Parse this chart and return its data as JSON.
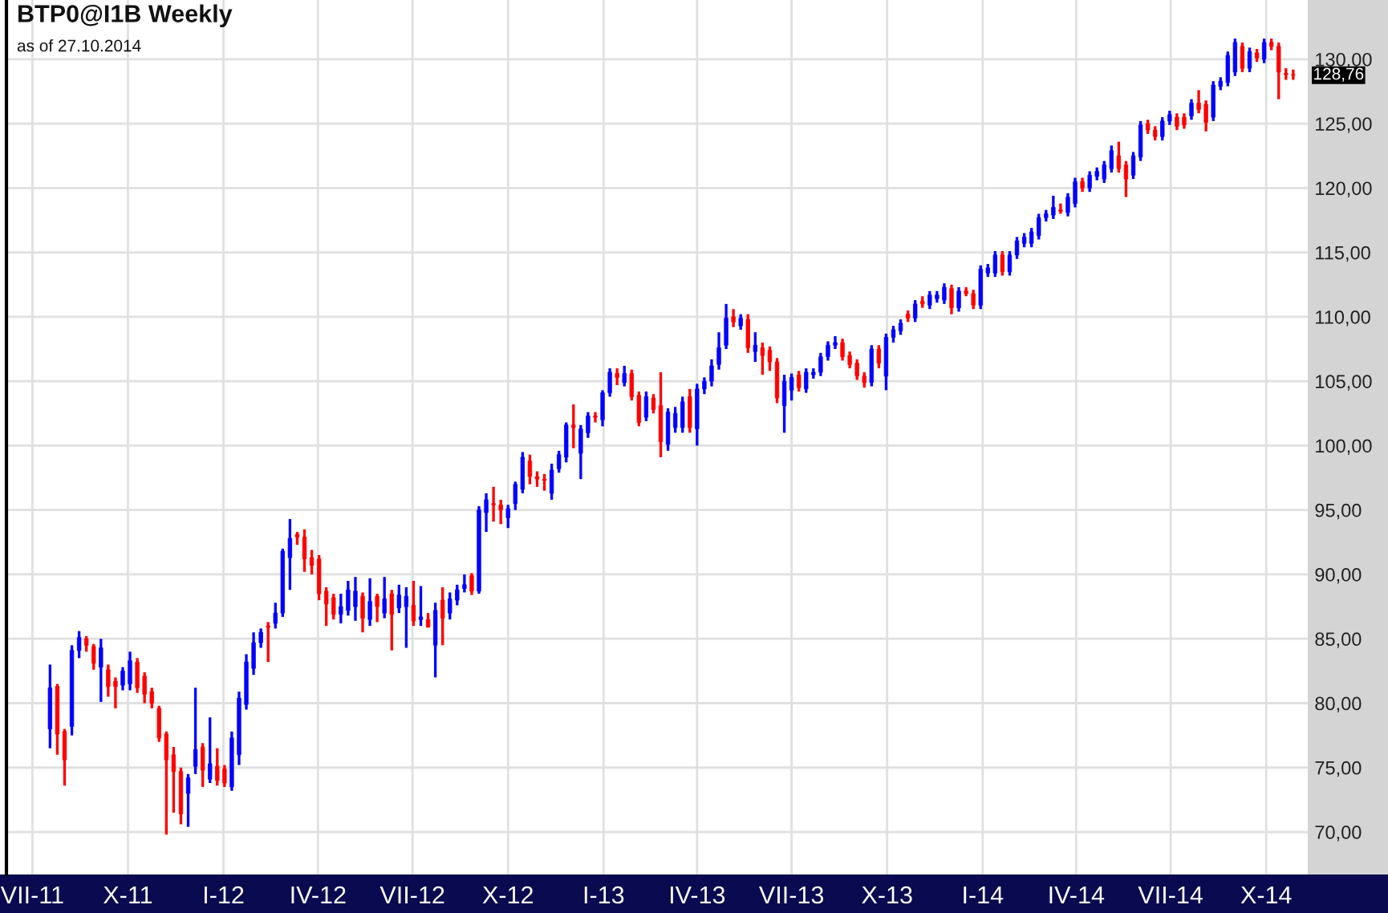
{
  "chart_data": {
    "type": "candlestick",
    "title": "BTP0@I1B Weekly",
    "subtitle": "as of 27.10.2014",
    "x": [
      "2011-07-18",
      "2011-07-25",
      "2011-08-01",
      "2011-08-08",
      "2011-08-15",
      "2011-08-22",
      "2011-08-29",
      "2011-09-05",
      "2011-09-12",
      "2011-09-19",
      "2011-09-26",
      "2011-10-03",
      "2011-10-10",
      "2011-10-17",
      "2011-10-24",
      "2011-10-31",
      "2011-11-07",
      "2011-11-14",
      "2011-11-21",
      "2011-11-28",
      "2011-12-05",
      "2011-12-12",
      "2011-12-19",
      "2011-12-26",
      "2012-01-02",
      "2012-01-09",
      "2012-01-16",
      "2012-01-23",
      "2012-01-30",
      "2012-02-06",
      "2012-02-13",
      "2012-02-20",
      "2012-02-27",
      "2012-03-05",
      "2012-03-12",
      "2012-03-19",
      "2012-03-26",
      "2012-04-02",
      "2012-04-09",
      "2012-04-16",
      "2012-04-23",
      "2012-04-30",
      "2012-05-07",
      "2012-05-14",
      "2012-05-21",
      "2012-05-28",
      "2012-06-04",
      "2012-06-11",
      "2012-06-18",
      "2012-06-25",
      "2012-07-02",
      "2012-07-09",
      "2012-07-16",
      "2012-07-23",
      "2012-07-30",
      "2012-08-06",
      "2012-08-13",
      "2012-08-20",
      "2012-08-27",
      "2012-09-03",
      "2012-09-10",
      "2012-09-17",
      "2012-09-24",
      "2012-10-01",
      "2012-10-08",
      "2012-10-15",
      "2012-10-22",
      "2012-10-29",
      "2012-11-05",
      "2012-11-12",
      "2012-11-19",
      "2012-11-26",
      "2012-12-03",
      "2012-12-10",
      "2012-12-17",
      "2012-12-24",
      "2012-12-31",
      "2013-01-07",
      "2013-01-14",
      "2013-01-21",
      "2013-01-28",
      "2013-02-04",
      "2013-02-11",
      "2013-02-18",
      "2013-02-25",
      "2013-03-04",
      "2013-03-11",
      "2013-03-18",
      "2013-03-25",
      "2013-04-01",
      "2013-04-08",
      "2013-04-15",
      "2013-04-22",
      "2013-04-29",
      "2013-05-06",
      "2013-05-13",
      "2013-05-20",
      "2013-05-27",
      "2013-06-03",
      "2013-06-10",
      "2013-06-17",
      "2013-06-24",
      "2013-07-01",
      "2013-07-08",
      "2013-07-15",
      "2013-07-22",
      "2013-07-29",
      "2013-08-05",
      "2013-08-12",
      "2013-08-19",
      "2013-08-26",
      "2013-09-02",
      "2013-09-09",
      "2013-09-16",
      "2013-09-23",
      "2013-09-30",
      "2013-10-07",
      "2013-10-14",
      "2013-10-21",
      "2013-10-28",
      "2013-11-04",
      "2013-11-11",
      "2013-11-18",
      "2013-11-25",
      "2013-12-02",
      "2013-12-09",
      "2013-12-16",
      "2013-12-23",
      "2013-12-30",
      "2014-01-06",
      "2014-01-13",
      "2014-01-20",
      "2014-01-27",
      "2014-02-03",
      "2014-02-10",
      "2014-02-17",
      "2014-02-24",
      "2014-03-03",
      "2014-03-10",
      "2014-03-17",
      "2014-03-24",
      "2014-03-31",
      "2014-04-07",
      "2014-04-14",
      "2014-04-21",
      "2014-04-28",
      "2014-05-05",
      "2014-05-12",
      "2014-05-19",
      "2014-05-26",
      "2014-06-02",
      "2014-06-09",
      "2014-06-16",
      "2014-06-23",
      "2014-06-30",
      "2014-07-07",
      "2014-07-14",
      "2014-07-21",
      "2014-07-28",
      "2014-08-04",
      "2014-08-11",
      "2014-08-18",
      "2014-08-25",
      "2014-09-01",
      "2014-09-08",
      "2014-09-15",
      "2014-09-22",
      "2014-09-29",
      "2014-10-06",
      "2014-10-13",
      "2014-10-20",
      "2014-10-27"
    ],
    "ohlc": [
      [
        78.0,
        83.0,
        76.5,
        81.2
      ],
      [
        81.3,
        81.5,
        76.0,
        77.6
      ],
      [
        77.8,
        78.0,
        73.6,
        75.6
      ],
      [
        78.2,
        84.5,
        77.5,
        84.1
      ],
      [
        84.1,
        85.6,
        83.5,
        85.1
      ],
      [
        85.0,
        85.2,
        84.0,
        84.5
      ],
      [
        84.4,
        84.6,
        82.6,
        83.1
      ],
      [
        82.8,
        85.0,
        80.1,
        84.3
      ],
      [
        82.6,
        83.0,
        80.5,
        81.3
      ],
      [
        81.7,
        82.0,
        79.6,
        81.3
      ],
      [
        81.4,
        82.8,
        81.0,
        82.5
      ],
      [
        81.5,
        84.0,
        81.0,
        83.3
      ],
      [
        83.2,
        83.5,
        80.8,
        81.2
      ],
      [
        82.1,
        82.4,
        80.0,
        80.7
      ],
      [
        80.9,
        81.2,
        79.6,
        80.0
      ],
      [
        79.6,
        79.8,
        77.0,
        77.3
      ],
      [
        77.6,
        77.8,
        69.8,
        75.6
      ],
      [
        76.0,
        76.6,
        71.5,
        74.7
      ],
      [
        74.7,
        75.0,
        70.6,
        71.4
      ],
      [
        73.0,
        74.5,
        70.4,
        74.2
      ],
      [
        75.1,
        81.2,
        74.5,
        76.4
      ],
      [
        76.6,
        76.9,
        73.5,
        74.8
      ],
      [
        74.1,
        78.9,
        73.8,
        75.3
      ],
      [
        75.1,
        76.5,
        73.6,
        74.0
      ],
      [
        74.9,
        75.2,
        73.5,
        73.8
      ],
      [
        73.5,
        77.8,
        73.2,
        77.3
      ],
      [
        76.0,
        80.9,
        75.2,
        80.4
      ],
      [
        79.9,
        83.8,
        79.5,
        83.2
      ],
      [
        82.7,
        85.5,
        82.2,
        84.7
      ],
      [
        84.7,
        85.8,
        84.3,
        85.5
      ],
      [
        86.0,
        86.3,
        83.2,
        85.9
      ],
      [
        86.2,
        87.8,
        85.8,
        87.0
      ],
      [
        87.0,
        92.0,
        86.7,
        91.8
      ],
      [
        91.3,
        94.3,
        88.8,
        92.8
      ],
      [
        93.1,
        93.3,
        92.3,
        92.9
      ],
      [
        92.9,
        93.5,
        90.2,
        91.2
      ],
      [
        91.3,
        91.9,
        90.0,
        90.7
      ],
      [
        91.2,
        91.5,
        88.0,
        88.5
      ],
      [
        88.7,
        89.0,
        86.0,
        87.7
      ],
      [
        88.2,
        88.5,
        86.5,
        86.9
      ],
      [
        86.9,
        88.5,
        86.2,
        87.5
      ],
      [
        87.2,
        89.5,
        86.8,
        88.8
      ],
      [
        87.5,
        89.8,
        86.4,
        88.7
      ],
      [
        88.3,
        88.6,
        85.5,
        86.6
      ],
      [
        86.5,
        89.7,
        86.0,
        87.9
      ],
      [
        88.3,
        88.5,
        86.3,
        87.5
      ],
      [
        87.0,
        89.8,
        86.6,
        88.1
      ],
      [
        88.5,
        88.8,
        84.1,
        86.9
      ],
      [
        87.4,
        89.2,
        87.0,
        88.4
      ],
      [
        87.5,
        89.0,
        84.3,
        88.3
      ],
      [
        87.6,
        89.5,
        86.0,
        86.4
      ],
      [
        86.5,
        89.1,
        86.0,
        86.7
      ],
      [
        86.5,
        87.0,
        85.9,
        85.9
      ],
      [
        84.5,
        87.8,
        82.0,
        87.2
      ],
      [
        88.0,
        89.0,
        84.5,
        86.6
      ],
      [
        87.0,
        88.6,
        86.5,
        88.1
      ],
      [
        88.0,
        89.2,
        87.6,
        88.8
      ],
      [
        88.9,
        90.0,
        88.6,
        89.2
      ],
      [
        89.9,
        90.1,
        88.4,
        88.7
      ],
      [
        88.7,
        95.3,
        88.5,
        95.0
      ],
      [
        94.8,
        96.3,
        93.3,
        95.8
      ],
      [
        95.5,
        96.8,
        94.1,
        95.4
      ],
      [
        95.4,
        95.8,
        93.9,
        95.0
      ],
      [
        94.4,
        95.4,
        93.6,
        95.1
      ],
      [
        95.5,
        97.2,
        95.0,
        97.0
      ],
      [
        96.6,
        99.5,
        96.3,
        99.1
      ],
      [
        98.8,
        99.3,
        97.0,
        97.6
      ],
      [
        97.6,
        98.0,
        96.8,
        97.4
      ],
      [
        97.4,
        97.8,
        96.5,
        97.3
      ],
      [
        96.3,
        98.6,
        95.8,
        98.1
      ],
      [
        98.2,
        99.6,
        97.9,
        99.3
      ],
      [
        99.1,
        101.8,
        98.7,
        101.6
      ],
      [
        101.6,
        103.2,
        99.8,
        101.4
      ],
      [
        99.4,
        101.6,
        97.4,
        101.3
      ],
      [
        101.0,
        102.6,
        100.6,
        102.3
      ],
      [
        102.3,
        102.6,
        101.8,
        102.2
      ],
      [
        102.0,
        104.3,
        101.5,
        104.1
      ],
      [
        104.1,
        106.0,
        103.8,
        105.7
      ],
      [
        105.6,
        106.0,
        104.7,
        105.3
      ],
      [
        104.9,
        106.2,
        104.6,
        105.6
      ],
      [
        105.6,
        105.9,
        103.5,
        103.8
      ],
      [
        103.9,
        104.2,
        101.5,
        101.8
      ],
      [
        102.2,
        104.2,
        101.9,
        103.8
      ],
      [
        103.7,
        104.0,
        102.5,
        102.8
      ],
      [
        103.1,
        105.7,
        99.1,
        100.3
      ],
      [
        100.1,
        102.9,
        99.6,
        102.6
      ],
      [
        101.4,
        103.0,
        101.0,
        102.5
      ],
      [
        101.4,
        103.8,
        101.0,
        103.4
      ],
      [
        103.8,
        104.4,
        101.0,
        101.4
      ],
      [
        101.3,
        104.8,
        100.0,
        104.4
      ],
      [
        104.4,
        105.3,
        104.0,
        105.0
      ],
      [
        105.0,
        106.7,
        104.6,
        106.2
      ],
      [
        106.3,
        108.8,
        105.9,
        107.6
      ],
      [
        107.8,
        111.0,
        107.5,
        109.9
      ],
      [
        110.0,
        110.6,
        109.2,
        109.6
      ],
      [
        109.3,
        110.2,
        109.0,
        109.9
      ],
      [
        109.8,
        110.2,
        107.2,
        107.6
      ],
      [
        107.3,
        108.8,
        106.5,
        107.8
      ],
      [
        107.6,
        108.0,
        105.5,
        107.0
      ],
      [
        107.4,
        107.7,
        105.8,
        106.5
      ],
      [
        106.5,
        106.8,
        103.3,
        103.7
      ],
      [
        103.1,
        105.5,
        101.0,
        105.0
      ],
      [
        104.3,
        105.6,
        103.5,
        105.3
      ],
      [
        105.5,
        105.8,
        104.2,
        104.5
      ],
      [
        104.4,
        106.0,
        104.1,
        105.7
      ],
      [
        105.5,
        106.0,
        105.2,
        105.7
      ],
      [
        105.7,
        107.2,
        105.4,
        106.9
      ],
      [
        106.9,
        108.1,
        106.6,
        107.8
      ],
      [
        107.8,
        108.5,
        107.5,
        108.0
      ],
      [
        108.0,
        108.3,
        106.6,
        106.9
      ],
      [
        107.0,
        107.3,
        106.0,
        106.3
      ],
      [
        106.4,
        106.7,
        105.1,
        105.4
      ],
      [
        105.4,
        105.7,
        104.5,
        104.9
      ],
      [
        104.9,
        107.8,
        104.6,
        107.5
      ],
      [
        107.5,
        107.8,
        106.0,
        106.4
      ],
      [
        105.4,
        108.7,
        104.3,
        108.4
      ],
      [
        108.4,
        109.3,
        108.0,
        109.0
      ],
      [
        108.9,
        109.8,
        108.6,
        109.5
      ],
      [
        110.2,
        110.5,
        109.6,
        109.9
      ],
      [
        109.9,
        111.3,
        109.6,
        111.0
      ],
      [
        111.2,
        111.6,
        110.7,
        111.0
      ],
      [
        110.9,
        112.0,
        110.6,
        111.7
      ],
      [
        111.4,
        112.0,
        111.1,
        111.7
      ],
      [
        111.3,
        112.6,
        111.0,
        112.3
      ],
      [
        112.2,
        112.5,
        110.2,
        110.7
      ],
      [
        110.7,
        112.3,
        110.4,
        112.0
      ],
      [
        112.0,
        112.3,
        111.6,
        111.8
      ],
      [
        111.8,
        112.1,
        110.6,
        110.9
      ],
      [
        110.9,
        114.0,
        110.6,
        113.7
      ],
      [
        113.4,
        114.1,
        113.1,
        113.8
      ],
      [
        113.4,
        115.1,
        113.1,
        114.8
      ],
      [
        114.8,
        115.1,
        113.2,
        113.5
      ],
      [
        113.5,
        115.1,
        113.2,
        114.8
      ],
      [
        114.8,
        116.2,
        114.5,
        115.9
      ],
      [
        115.7,
        116.5,
        115.4,
        116.2
      ],
      [
        115.7,
        116.9,
        115.4,
        116.6
      ],
      [
        116.3,
        118.0,
        116.0,
        117.7
      ],
      [
        117.7,
        118.3,
        117.4,
        118.0
      ],
      [
        117.9,
        119.4,
        117.6,
        118.5
      ],
      [
        118.3,
        118.8,
        118.0,
        118.2
      ],
      [
        118.1,
        119.6,
        117.8,
        119.3
      ],
      [
        118.8,
        120.8,
        118.5,
        120.5
      ],
      [
        120.5,
        120.8,
        119.7,
        120.0
      ],
      [
        120.0,
        121.3,
        119.7,
        121.0
      ],
      [
        120.9,
        121.6,
        120.6,
        121.3
      ],
      [
        120.7,
        122.1,
        120.4,
        121.8
      ],
      [
        121.5,
        123.3,
        121.2,
        122.9
      ],
      [
        122.5,
        123.6,
        121.2,
        121.5
      ],
      [
        121.8,
        122.1,
        119.3,
        120.7
      ],
      [
        121.0,
        122.8,
        120.7,
        122.5
      ],
      [
        122.4,
        125.2,
        122.1,
        124.9
      ],
      [
        125.0,
        125.3,
        124.2,
        124.5
      ],
      [
        124.5,
        124.8,
        123.7,
        124.0
      ],
      [
        124.0,
        125.5,
        123.7,
        125.2
      ],
      [
        125.2,
        126.0,
        124.9,
        125.7
      ],
      [
        125.5,
        125.8,
        124.5,
        124.8
      ],
      [
        125.5,
        125.8,
        124.6,
        124.9
      ],
      [
        125.6,
        126.9,
        125.3,
        126.6
      ],
      [
        126.6,
        127.6,
        125.8,
        126.1
      ],
      [
        126.5,
        126.8,
        124.4,
        125.1
      ],
      [
        125.5,
        128.3,
        125.2,
        128.0
      ],
      [
        127.9,
        128.6,
        127.6,
        128.3
      ],
      [
        128.2,
        130.6,
        127.9,
        130.3
      ],
      [
        129.0,
        131.6,
        128.7,
        131.3
      ],
      [
        131.0,
        131.3,
        129.0,
        129.3
      ],
      [
        129.3,
        130.9,
        129.0,
        130.6
      ],
      [
        130.5,
        130.8,
        129.8,
        130.1
      ],
      [
        130.0,
        131.6,
        129.7,
        131.3
      ],
      [
        131.3,
        131.6,
        130.7,
        131.0
      ],
      [
        131.0,
        131.3,
        126.9,
        129.0
      ],
      [
        128.9,
        129.3,
        128.4,
        128.8
      ],
      [
        128.8,
        129.2,
        128.4,
        128.76
      ]
    ],
    "colors": [
      "#0000ff",
      "#ff0000",
      "#ff0000",
      "#0000ff",
      "#0000ff",
      "#ff0000",
      "#ff0000",
      "#0000ff",
      "#ff0000",
      "#ff0000",
      "#0000ff",
      "#0000ff",
      "#ff0000",
      "#ff0000",
      "#ff0000",
      "#ff0000",
      "#ff0000",
      "#ff0000",
      "#ff0000",
      "#0000ff",
      "#0000ff",
      "#ff0000",
      "#0000ff",
      "#ff0000",
      "#ff0000",
      "#0000ff",
      "#0000ff",
      "#0000ff",
      "#0000ff",
      "#0000ff",
      "#ff0000",
      "#0000ff",
      "#0000ff",
      "#0000ff",
      "#ff0000",
      "#ff0000",
      "#ff0000",
      "#ff0000",
      "#ff0000",
      "#ff0000",
      "#0000ff",
      "#0000ff",
      "#0000ff",
      "#ff0000",
      "#0000ff",
      "#ff0000",
      "#0000ff",
      "#ff0000",
      "#0000ff",
      "#0000ff",
      "#ff0000",
      "#0000ff",
      "#ff0000",
      "#0000ff",
      "#ff0000",
      "#0000ff",
      "#0000ff",
      "#0000ff",
      "#ff0000",
      "#0000ff",
      "#0000ff",
      "#ff0000",
      "#ff0000",
      "#0000ff",
      "#0000ff",
      "#0000ff",
      "#ff0000",
      "#ff0000",
      "#ff0000",
      "#0000ff",
      "#0000ff",
      "#0000ff",
      "#ff0000",
      "#0000ff",
      "#0000ff",
      "#ff0000",
      "#0000ff",
      "#0000ff",
      "#ff0000",
      "#0000ff",
      "#ff0000",
      "#ff0000",
      "#0000ff",
      "#ff0000",
      "#ff0000",
      "#0000ff",
      "#0000ff",
      "#0000ff",
      "#ff0000",
      "#0000ff",
      "#0000ff",
      "#0000ff",
      "#0000ff",
      "#0000ff",
      "#ff0000",
      "#0000ff",
      "#ff0000",
      "#0000ff",
      "#ff0000",
      "#ff0000",
      "#ff0000",
      "#0000ff",
      "#0000ff",
      "#ff0000",
      "#0000ff",
      "#0000ff",
      "#0000ff",
      "#0000ff",
      "#0000ff",
      "#ff0000",
      "#ff0000",
      "#ff0000",
      "#ff0000",
      "#0000ff",
      "#ff0000",
      "#0000ff",
      "#0000ff",
      "#0000ff",
      "#ff0000",
      "#0000ff",
      "#ff0000",
      "#0000ff",
      "#0000ff",
      "#0000ff",
      "#ff0000",
      "#0000ff",
      "#ff0000",
      "#ff0000",
      "#0000ff",
      "#0000ff",
      "#0000ff",
      "#ff0000",
      "#0000ff",
      "#0000ff",
      "#0000ff",
      "#0000ff",
      "#0000ff",
      "#0000ff",
      "#0000ff",
      "#ff0000",
      "#0000ff",
      "#0000ff",
      "#ff0000",
      "#0000ff",
      "#0000ff",
      "#0000ff",
      "#0000ff",
      "#ff0000",
      "#ff0000",
      "#0000ff",
      "#0000ff",
      "#ff0000",
      "#ff0000",
      "#0000ff",
      "#0000ff",
      "#ff0000",
      "#ff0000",
      "#0000ff",
      "#ff0000",
      "#ff0000",
      "#0000ff",
      "#0000ff",
      "#0000ff",
      "#0000ff",
      "#ff0000",
      "#0000ff",
      "#ff0000",
      "#0000ff",
      "#ff0000",
      "#ff0000",
      "#ff0000",
      "#ff0000"
    ],
    "xlim": [
      "2011-06-06",
      "2014-11-10"
    ],
    "xticks": [
      {
        "value": "2011-07-01",
        "label": "VII-11"
      },
      {
        "value": "2011-10-01",
        "label": "X-11"
      },
      {
        "value": "2012-01-01",
        "label": "I-12"
      },
      {
        "value": "2012-04-01",
        "label": "IV-12"
      },
      {
        "value": "2012-07-01",
        "label": "VII-12"
      },
      {
        "value": "2012-10-01",
        "label": "X-12"
      },
      {
        "value": "2013-01-01",
        "label": "I-13"
      },
      {
        "value": "2013-04-01",
        "label": "IV-13"
      },
      {
        "value": "2013-07-01",
        "label": "VII-13"
      },
      {
        "value": "2013-10-01",
        "label": "X-13"
      },
      {
        "value": "2014-01-01",
        "label": "I-14"
      },
      {
        "value": "2014-04-01",
        "label": "IV-14"
      },
      {
        "value": "2014-07-01",
        "label": "VII-14"
      },
      {
        "value": "2014-10-01",
        "label": "X-14"
      }
    ],
    "ylim": [
      66.7,
      134.6
    ],
    "yticks": [
      {
        "value": 70,
        "label": "70,00"
      },
      {
        "value": 75,
        "label": "75,00"
      },
      {
        "value": 80,
        "label": "80,00"
      },
      {
        "value": 85,
        "label": "85,00"
      },
      {
        "value": 90,
        "label": "90,00"
      },
      {
        "value": 95,
        "label": "95,00"
      },
      {
        "value": 100,
        "label": "100,00"
      },
      {
        "value": 105,
        "label": "105,00"
      },
      {
        "value": 110,
        "label": "110,00"
      },
      {
        "value": 115,
        "label": "115,00"
      },
      {
        "value": 120,
        "label": "120,00"
      },
      {
        "value": 125,
        "label": "125,00"
      },
      {
        "value": 130,
        "label": "130,00"
      }
    ],
    "grid": true,
    "annotations": [
      {
        "text": "128,76",
        "x": "2014-10-27",
        "y": 128.76
      }
    ]
  }
}
